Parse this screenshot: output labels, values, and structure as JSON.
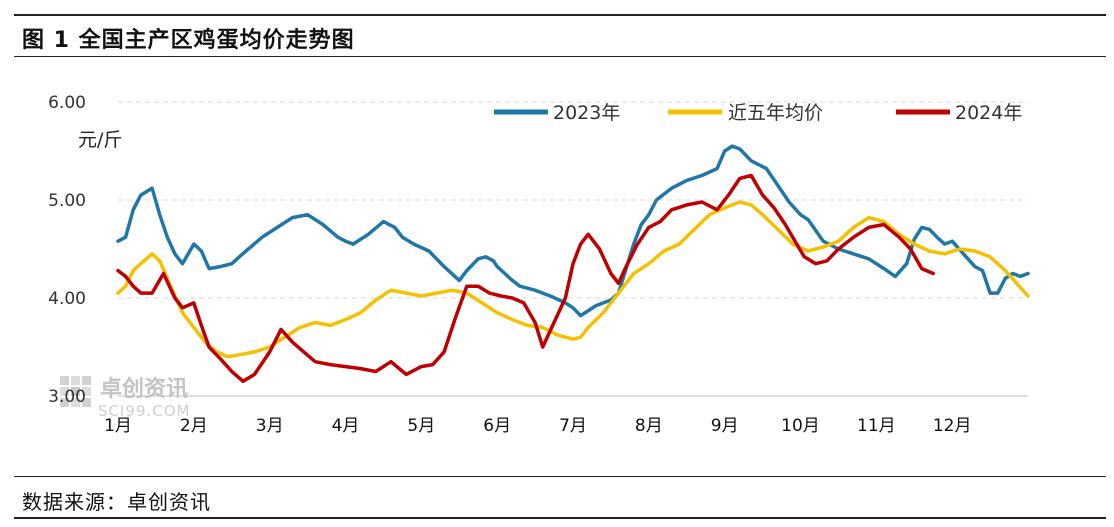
{
  "header": {
    "title": "图 1 全国主产区鸡蛋均价走势图"
  },
  "footer": {
    "source": "数据来源：卓创资讯"
  },
  "watermark": {
    "name": "卓创资讯",
    "site": "SCI99.COM"
  },
  "chart_data": {
    "type": "line",
    "ylabel": "元/斤",
    "ylim": [
      3.0,
      6.0
    ],
    "yticks": [
      "3.00",
      "4.00",
      "5.00",
      "6.00"
    ],
    "x_ticks": [
      "1月",
      "2月",
      "3月",
      "4月",
      "5月",
      "6月",
      "7月",
      "8月",
      "9月",
      "10月",
      "11月",
      "12月"
    ],
    "xlim": [
      1.0,
      13.0
    ],
    "grid": true,
    "legend_position": "top",
    "series": [
      {
        "name": "2023年",
        "color": "#1f77a8",
        "x": [
          1.0,
          1.1,
          1.2,
          1.3,
          1.45,
          1.55,
          1.65,
          1.75,
          1.85,
          2.0,
          2.1,
          2.2,
          2.35,
          2.5,
          2.6,
          2.75,
          2.9,
          3.1,
          3.3,
          3.5,
          3.7,
          3.9,
          4.0,
          4.1,
          4.3,
          4.5,
          4.65,
          4.75,
          4.9,
          5.1,
          5.3,
          5.5,
          5.6,
          5.75,
          5.85,
          5.95,
          6.0,
          6.1,
          6.2,
          6.3,
          6.5,
          6.7,
          6.9,
          7.0,
          7.1,
          7.3,
          7.5,
          7.6,
          7.7,
          7.8,
          7.9,
          8.0,
          8.1,
          8.3,
          8.5,
          8.7,
          8.9,
          9.0,
          9.1,
          9.2,
          9.35,
          9.55,
          9.7,
          9.85,
          10.0,
          10.1,
          10.3,
          10.5,
          10.7,
          10.9,
          11.1,
          11.25,
          11.4,
          11.5,
          11.6,
          11.7,
          11.8,
          11.9,
          12.0,
          12.15,
          12.3,
          12.4,
          12.5,
          12.6,
          12.7,
          12.8,
          12.9,
          13.0
        ],
        "values": [
          4.58,
          4.62,
          4.9,
          5.05,
          5.12,
          4.85,
          4.62,
          4.45,
          4.35,
          4.55,
          4.48,
          4.3,
          4.32,
          4.35,
          4.42,
          4.52,
          4.62,
          4.72,
          4.82,
          4.85,
          4.75,
          4.62,
          4.58,
          4.55,
          4.65,
          4.78,
          4.72,
          4.62,
          4.55,
          4.48,
          4.32,
          4.18,
          4.28,
          4.4,
          4.42,
          4.38,
          4.32,
          4.25,
          4.18,
          4.12,
          4.08,
          4.02,
          3.95,
          3.9,
          3.82,
          3.92,
          3.98,
          4.05,
          4.3,
          4.55,
          4.75,
          4.85,
          5.0,
          5.12,
          5.2,
          5.25,
          5.32,
          5.5,
          5.55,
          5.52,
          5.4,
          5.32,
          5.15,
          4.98,
          4.85,
          4.8,
          4.58,
          4.5,
          4.45,
          4.4,
          4.3,
          4.22,
          4.35,
          4.6,
          4.72,
          4.7,
          4.62,
          4.55,
          4.58,
          4.45,
          4.32,
          4.28,
          4.05,
          4.05,
          4.2,
          4.25,
          4.22,
          4.25
        ]
      },
      {
        "name": "近五年均价",
        "color": "#f5c000",
        "x": [
          1.0,
          1.1,
          1.2,
          1.3,
          1.45,
          1.55,
          1.65,
          1.75,
          1.85,
          2.0,
          2.15,
          2.3,
          2.45,
          2.6,
          2.8,
          3.0,
          3.2,
          3.4,
          3.6,
          3.8,
          4.0,
          4.2,
          4.4,
          4.6,
          4.8,
          5.0,
          5.2,
          5.4,
          5.6,
          5.8,
          6.0,
          6.2,
          6.4,
          6.6,
          6.8,
          7.0,
          7.1,
          7.2,
          7.4,
          7.6,
          7.8,
          8.0,
          8.2,
          8.4,
          8.6,
          8.8,
          9.0,
          9.2,
          9.35,
          9.5,
          9.7,
          9.9,
          10.1,
          10.3,
          10.5,
          10.7,
          10.9,
          11.1,
          11.3,
          11.5,
          11.7,
          11.9,
          12.1,
          12.3,
          12.5,
          12.7,
          12.85,
          13.0
        ],
        "values": [
          4.05,
          4.12,
          4.28,
          4.35,
          4.45,
          4.38,
          4.2,
          4.02,
          3.85,
          3.7,
          3.55,
          3.45,
          3.4,
          3.42,
          3.45,
          3.5,
          3.6,
          3.7,
          3.75,
          3.72,
          3.78,
          3.85,
          3.98,
          4.08,
          4.05,
          4.02,
          4.05,
          4.08,
          4.05,
          3.95,
          3.85,
          3.78,
          3.72,
          3.7,
          3.62,
          3.58,
          3.6,
          3.7,
          3.85,
          4.05,
          4.25,
          4.35,
          4.48,
          4.55,
          4.7,
          4.85,
          4.92,
          4.98,
          4.95,
          4.85,
          4.7,
          4.55,
          4.48,
          4.52,
          4.58,
          4.72,
          4.82,
          4.78,
          4.65,
          4.55,
          4.48,
          4.45,
          4.5,
          4.48,
          4.42,
          4.28,
          4.15,
          4.02
        ]
      },
      {
        "name": "2024年",
        "color": "#c00000",
        "x": [
          1.0,
          1.1,
          1.2,
          1.3,
          1.45,
          1.6,
          1.75,
          1.85,
          2.0,
          2.1,
          2.2,
          2.35,
          2.5,
          2.65,
          2.8,
          3.0,
          3.15,
          3.3,
          3.45,
          3.6,
          3.8,
          4.0,
          4.2,
          4.4,
          4.6,
          4.8,
          5.0,
          5.15,
          5.3,
          5.45,
          5.6,
          5.75,
          5.9,
          6.05,
          6.2,
          6.35,
          6.5,
          6.6,
          6.75,
          6.9,
          7.0,
          7.1,
          7.2,
          7.35,
          7.5,
          7.6,
          7.7,
          7.85,
          8.0,
          8.15,
          8.3,
          8.5,
          8.7,
          8.9,
          9.05,
          9.2,
          9.35,
          9.5,
          9.65,
          9.8,
          9.95,
          10.05,
          10.2,
          10.35,
          10.5,
          10.7,
          10.9,
          11.1,
          11.3,
          11.45,
          11.6,
          11.75
        ],
        "values": [
          4.28,
          4.22,
          4.12,
          4.05,
          4.05,
          4.25,
          4.0,
          3.9,
          3.95,
          3.72,
          3.5,
          3.38,
          3.25,
          3.15,
          3.22,
          3.45,
          3.68,
          3.55,
          3.45,
          3.35,
          3.32,
          3.3,
          3.28,
          3.25,
          3.35,
          3.22,
          3.3,
          3.32,
          3.45,
          3.8,
          4.12,
          4.12,
          4.05,
          4.02,
          4.0,
          3.95,
          3.75,
          3.5,
          3.75,
          4.0,
          4.35,
          4.55,
          4.65,
          4.5,
          4.25,
          4.15,
          4.32,
          4.55,
          4.72,
          4.78,
          4.9,
          4.95,
          4.98,
          4.9,
          5.05,
          5.22,
          5.25,
          5.05,
          4.92,
          4.75,
          4.55,
          4.42,
          4.35,
          4.38,
          4.5,
          4.62,
          4.72,
          4.75,
          4.62,
          4.5,
          4.3,
          4.25
        ]
      }
    ]
  }
}
